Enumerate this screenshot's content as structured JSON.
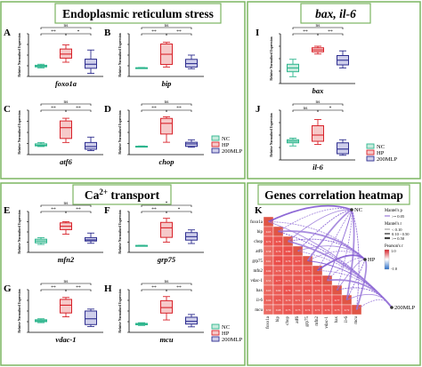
{
  "sections": {
    "er": {
      "title": "Endoplasmic reticulum stress"
    },
    "bax": {
      "title": "bax, il-6"
    },
    "ca": {
      "title_main": "Ca",
      "title_sup": "2+",
      "title_rest": " transport"
    },
    "heat": {
      "title": "Genes correlation heatmap"
    }
  },
  "ylabel": "Relative Normalized Expression",
  "legend": [
    {
      "name": "NC",
      "color": "#2db58d"
    },
    {
      "name": "HP",
      "color": "#d8222a"
    },
    {
      "name": "200MLP",
      "color": "#2e2e8f"
    }
  ],
  "chart_data": [
    {
      "type": "box",
      "panel": "A",
      "gene": "foxo1a",
      "sig": [
        {
          "pair": [
            0,
            1
          ],
          "text": "**"
        },
        {
          "pair": [
            1,
            2
          ],
          "text": "*"
        },
        {
          "pair": [
            0,
            2
          ],
          "text": "ns"
        }
      ],
      "boxes": [
        {
          "min": 0.92,
          "q1": 0.97,
          "med": 1.0,
          "q3": 1.05,
          "max": 1.1
        },
        {
          "min": 1.2,
          "q1": 1.4,
          "med": 1.6,
          "q3": 1.85,
          "max": 2.05
        },
        {
          "min": 0.65,
          "q1": 0.9,
          "med": 1.1,
          "q3": 1.35,
          "max": 1.8
        }
      ],
      "ylim": [
        0.5,
        2.6
      ]
    },
    {
      "type": "box",
      "panel": "B",
      "gene": "bip",
      "sig": [
        {
          "pair": [
            0,
            1
          ],
          "text": "**"
        },
        {
          "pair": [
            1,
            2
          ],
          "text": "**"
        },
        {
          "pair": [
            0,
            2
          ],
          "text": "ns"
        }
      ],
      "boxes": [
        {
          "min": 0.95,
          "q1": 0.98,
          "med": 1.0,
          "q3": 1.02,
          "max": 1.05
        },
        {
          "min": 1.1,
          "q1": 1.4,
          "med": 2.6,
          "q3": 3.8,
          "max": 4.0
        },
        {
          "min": 0.9,
          "q1": 1.1,
          "med": 1.5,
          "q3": 2.0,
          "max": 2.5
        }
      ],
      "ylim": [
        0,
        5
      ]
    },
    {
      "type": "box",
      "panel": "C",
      "gene": "atf6",
      "sig": [
        {
          "pair": [
            0,
            1
          ],
          "text": "**"
        },
        {
          "pair": [
            1,
            2
          ],
          "text": "**"
        },
        {
          "pair": [
            0,
            2
          ],
          "text": "ns"
        }
      ],
      "boxes": [
        {
          "min": 0.9,
          "q1": 0.95,
          "med": 1.0,
          "q3": 1.1,
          "max": 1.2
        },
        {
          "min": 1.2,
          "q1": 1.5,
          "med": 2.3,
          "q3": 2.8,
          "max": 3.0
        },
        {
          "min": 0.6,
          "q1": 0.7,
          "med": 0.9,
          "q3": 1.2,
          "max": 1.6
        }
      ],
      "ylim": [
        0.3,
        3.6
      ]
    },
    {
      "type": "box",
      "panel": "D",
      "gene": "chop",
      "sig": [
        {
          "pair": [
            0,
            1
          ],
          "text": "**"
        },
        {
          "pair": [
            1,
            2
          ],
          "text": "**"
        },
        {
          "pair": [
            0,
            2
          ],
          "text": "ns"
        }
      ],
      "boxes": [
        {
          "min": 0.95,
          "q1": 0.98,
          "med": 1.0,
          "q3": 1.02,
          "max": 1.05
        },
        {
          "min": 1.5,
          "q1": 2.5,
          "med": 3.8,
          "q3": 4.4,
          "max": 4.6
        },
        {
          "min": 0.9,
          "q1": 1.0,
          "med": 1.3,
          "q3": 1.5,
          "max": 1.8
        }
      ],
      "ylim": [
        0,
        5.4
      ]
    },
    {
      "type": "box",
      "panel": "I",
      "gene": "bax",
      "sig": [
        {
          "pair": [
            0,
            1
          ],
          "text": "**"
        },
        {
          "pair": [
            1,
            2
          ],
          "text": "**"
        },
        {
          "pair": [
            0,
            2
          ],
          "text": "ns"
        }
      ],
      "boxes": [
        {
          "min": 0.72,
          "q1": 0.88,
          "med": 1.0,
          "q3": 1.12,
          "max": 1.28
        },
        {
          "min": 1.45,
          "q1": 1.52,
          "med": 1.58,
          "q3": 1.65,
          "max": 1.7
        },
        {
          "min": 1.0,
          "q1": 1.1,
          "med": 1.25,
          "q3": 1.4,
          "max": 1.55
        }
      ],
      "ylim": [
        0.5,
        2.1
      ]
    },
    {
      "type": "box",
      "panel": "J",
      "gene": "il-6",
      "sig": [
        {
          "pair": [
            0,
            1
          ],
          "text": "ns"
        },
        {
          "pair": [
            1,
            2
          ],
          "text": "*"
        },
        {
          "pair": [
            0,
            2
          ],
          "text": "ns"
        }
      ],
      "boxes": [
        {
          "min": 0.85,
          "q1": 0.95,
          "med": 1.0,
          "q3": 1.05,
          "max": 1.1
        },
        {
          "min": 0.9,
          "q1": 1.0,
          "med": 1.2,
          "q3": 1.5,
          "max": 1.7
        },
        {
          "min": 0.55,
          "q1": 0.6,
          "med": 0.75,
          "q3": 0.95,
          "max": 1.05
        }
      ],
      "ylim": [
        0.4,
        2.0
      ]
    },
    {
      "type": "box",
      "panel": "E",
      "gene": "mfn2",
      "sig": [
        {
          "pair": [
            0,
            1
          ],
          "text": "**"
        },
        {
          "pair": [
            1,
            2
          ],
          "text": "**"
        },
        {
          "pair": [
            0,
            2
          ],
          "text": "ns"
        }
      ],
      "boxes": [
        {
          "min": 0.85,
          "q1": 0.92,
          "med": 1.0,
          "q3": 1.08,
          "max": 1.15
        },
        {
          "min": 1.3,
          "q1": 1.5,
          "med": 1.65,
          "q3": 1.8,
          "max": 1.85
        },
        {
          "min": 0.9,
          "q1": 1.0,
          "med": 1.05,
          "q3": 1.15,
          "max": 1.35
        }
      ],
      "ylim": [
        0.5,
        2.3
      ]
    },
    {
      "type": "box",
      "panel": "F",
      "gene": "grp75",
      "sig": [
        {
          "pair": [
            0,
            1
          ],
          "text": "**"
        },
        {
          "pair": [
            1,
            2
          ],
          "text": "*"
        },
        {
          "pair": [
            0,
            2
          ],
          "text": "*"
        }
      ],
      "boxes": [
        {
          "min": 0.95,
          "q1": 0.98,
          "med": 1.0,
          "q3": 1.02,
          "max": 1.05
        },
        {
          "min": 1.5,
          "q1": 2.2,
          "med": 3.6,
          "q3": 4.4,
          "max": 5.0
        },
        {
          "min": 1.3,
          "q1": 1.8,
          "med": 2.3,
          "q3": 2.9,
          "max": 3.3
        }
      ],
      "ylim": [
        0,
        6
      ]
    },
    {
      "type": "box",
      "panel": "G",
      "gene": "vdac-1",
      "sig": [
        {
          "pair": [
            0,
            1
          ],
          "text": "**"
        },
        {
          "pair": [
            1,
            2
          ],
          "text": "**"
        },
        {
          "pair": [
            0,
            2
          ],
          "text": "ns"
        }
      ],
      "boxes": [
        {
          "min": 0.9,
          "q1": 0.95,
          "med": 1.0,
          "q3": 1.05,
          "max": 1.1
        },
        {
          "min": 1.2,
          "q1": 1.4,
          "med": 1.8,
          "q3": 2.1,
          "max": 2.2
        },
        {
          "min": 0.7,
          "q1": 0.8,
          "med": 1.1,
          "q3": 1.5,
          "max": 1.6
        }
      ],
      "ylim": [
        0.4,
        2.6
      ]
    },
    {
      "type": "box",
      "panel": "H",
      "gene": "mcu",
      "sig": [
        {
          "pair": [
            0,
            1
          ],
          "text": "**"
        },
        {
          "pair": [
            1,
            2
          ],
          "text": "**"
        },
        {
          "pair": [
            0,
            2
          ],
          "text": "ns"
        }
      ],
      "boxes": [
        {
          "min": 0.9,
          "q1": 0.95,
          "med": 1.0,
          "q3": 1.05,
          "max": 1.1
        },
        {
          "min": 1.3,
          "q1": 1.8,
          "med": 2.2,
          "q3": 2.7,
          "max": 3.0
        },
        {
          "min": 0.8,
          "q1": 1.0,
          "med": 1.2,
          "q3": 1.5,
          "max": 1.7
        }
      ],
      "ylim": [
        0.4,
        3.5
      ]
    },
    {
      "type": "heatmap",
      "panel": "K",
      "genes": [
        "foxo1a",
        "bip",
        "chop",
        "atf6",
        "grp75",
        "mfn2",
        "vdac-1",
        "bax",
        "il-6",
        "mcu"
      ],
      "nodes": [
        "NC",
        "HP",
        "200MLP"
      ],
      "legend_mantel_p": "Mantel's p",
      "legend_mantel_p_item": ">= 0.05",
      "legend_mantel_r": "Mantel's r",
      "legend_mantel_r_items": [
        "< 0.10",
        "0.10 - 0.50",
        ">= 0.50"
      ],
      "legend_pearson": "Pearson's r",
      "pearson_ticks": [
        "1.0",
        "-1.0"
      ],
      "values": [
        [
          0.65,
          0.72,
          0.58,
          0.61,
          0.69,
          0.55,
          0.63,
          0.66,
          0.59
        ],
        [
          0.78,
          0.74,
          0.81,
          0.7,
          0.77,
          0.69,
          0.73,
          0.68
        ],
        [
          0.8,
          0.76,
          0.73,
          0.71,
          0.79,
          0.7,
          0.75
        ],
        [
          0.77,
          0.72,
          0.74,
          0.69,
          0.71,
          0.73
        ],
        [
          0.75,
          0.71,
          0.76,
          0.68,
          0.74
        ],
        [
          0.79,
          0.73,
          0.7,
          0.72
        ],
        [
          0.76,
          0.71,
          0.74
        ],
        [
          0.77,
          0.73
        ],
        [
          0.72
        ]
      ]
    }
  ]
}
